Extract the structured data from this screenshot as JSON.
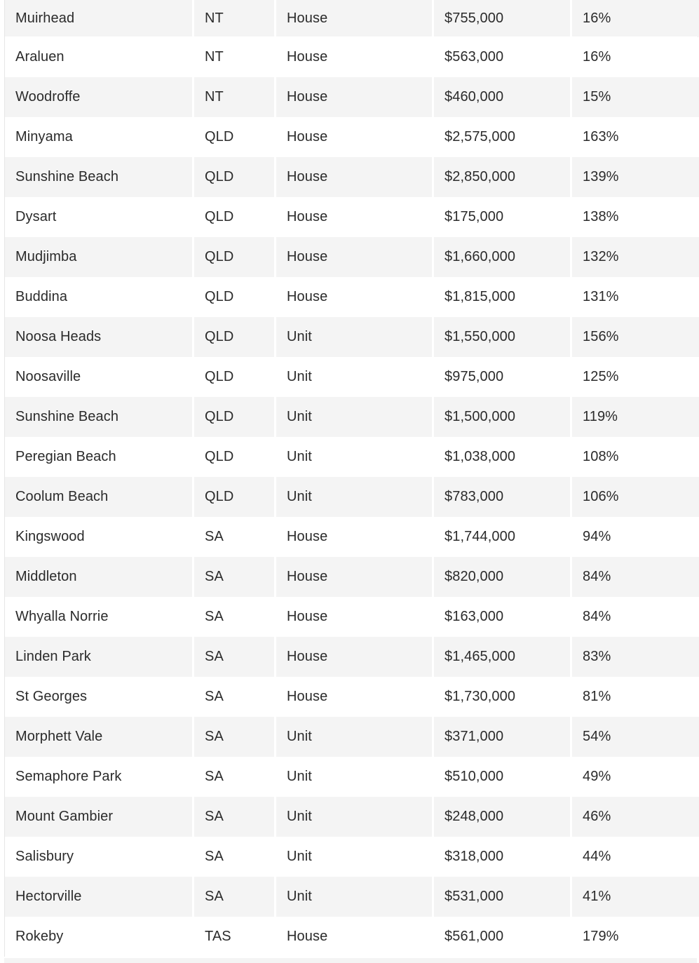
{
  "table": {
    "rows": [
      {
        "suburb": "Muirhead",
        "state": "NT",
        "type": "House",
        "price": "$755,000",
        "growth": "16%"
      },
      {
        "suburb": "Araluen",
        "state": "NT",
        "type": "House",
        "price": "$563,000",
        "growth": "16%"
      },
      {
        "suburb": "Woodroffe",
        "state": "NT",
        "type": "House",
        "price": "$460,000",
        "growth": "15%"
      },
      {
        "suburb": "Minyama",
        "state": "QLD",
        "type": "House",
        "price": "$2,575,000",
        "growth": "163%"
      },
      {
        "suburb": "Sunshine Beach",
        "state": "QLD",
        "type": "House",
        "price": "$2,850,000",
        "growth": "139%"
      },
      {
        "suburb": "Dysart",
        "state": "QLD",
        "type": "House",
        "price": "$175,000",
        "growth": "138%"
      },
      {
        "suburb": "Mudjimba",
        "state": "QLD",
        "type": "House",
        "price": "$1,660,000",
        "growth": "132%"
      },
      {
        "suburb": "Buddina",
        "state": "QLD",
        "type": "House",
        "price": "$1,815,000",
        "growth": "131%"
      },
      {
        "suburb": "Noosa Heads",
        "state": "QLD",
        "type": "Unit",
        "price": "$1,550,000",
        "growth": "156%"
      },
      {
        "suburb": "Noosaville",
        "state": "QLD",
        "type": "Unit",
        "price": "$975,000",
        "growth": "125%"
      },
      {
        "suburb": "Sunshine Beach",
        "state": "QLD",
        "type": "Unit",
        "price": "$1,500,000",
        "growth": "119%"
      },
      {
        "suburb": "Peregian Beach",
        "state": "QLD",
        "type": "Unit",
        "price": "$1,038,000",
        "growth": "108%"
      },
      {
        "suburb": "Coolum Beach",
        "state": "QLD",
        "type": "Unit",
        "price": "$783,000",
        "growth": "106%"
      },
      {
        "suburb": "Kingswood",
        "state": "SA",
        "type": "House",
        "price": "$1,744,000",
        "growth": "94%"
      },
      {
        "suburb": "Middleton",
        "state": "SA",
        "type": "House",
        "price": "$820,000",
        "growth": "84%"
      },
      {
        "suburb": "Whyalla Norrie",
        "state": "SA",
        "type": "House",
        "price": "$163,000",
        "growth": "84%"
      },
      {
        "suburb": "Linden Park",
        "state": "SA",
        "type": "House",
        "price": "$1,465,000",
        "growth": "83%"
      },
      {
        "suburb": "St Georges",
        "state": "SA",
        "type": "House",
        "price": "$1,730,000",
        "growth": "81%"
      },
      {
        "suburb": "Morphett Vale",
        "state": "SA",
        "type": "Unit",
        "price": "$371,000",
        "growth": "54%"
      },
      {
        "suburb": "Semaphore Park",
        "state": "SA",
        "type": "Unit",
        "price": "$510,000",
        "growth": "49%"
      },
      {
        "suburb": "Mount Gambier",
        "state": "SA",
        "type": "Unit",
        "price": "$248,000",
        "growth": "46%"
      },
      {
        "suburb": "Salisbury",
        "state": "SA",
        "type": "Unit",
        "price": "$318,000",
        "growth": "44%"
      },
      {
        "suburb": "Hectorville",
        "state": "SA",
        "type": "Unit",
        "price": "$531,000",
        "growth": "41%"
      },
      {
        "suburb": "Rokeby",
        "state": "TAS",
        "type": "House",
        "price": "$561,000",
        "growth": "179%"
      }
    ]
  }
}
